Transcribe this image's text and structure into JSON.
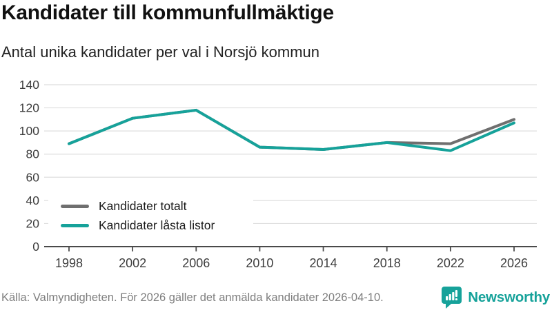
{
  "header": {
    "title": "Kandidater till kommunfullmäktige",
    "subtitle": "Antal unika kandidater per val i Norsjö kommun"
  },
  "chart_data": {
    "type": "line",
    "title": "Kandidater till kommunfullmäktige",
    "subtitle": "Antal unika kandidater per val i Norsjö kommun",
    "categories": [
      "1998",
      "2002",
      "2006",
      "2010",
      "2014",
      "2018",
      "2022",
      "2026"
    ],
    "series": [
      {
        "name": "Kandidater totalt",
        "color": "#6f6f6f",
        "values": [
          89,
          111,
          118,
          86,
          84,
          90,
          89,
          110
        ]
      },
      {
        "name": "Kandidater låsta listor",
        "color": "#16a29a",
        "values": [
          89,
          111,
          118,
          86,
          84,
          90,
          83,
          107
        ]
      }
    ],
    "xlabel": "",
    "ylabel": "",
    "ylim": [
      0,
      140
    ],
    "yticks": [
      0,
      20,
      40,
      60,
      80,
      100,
      120,
      140
    ],
    "grid": true,
    "legend_position": "inside-bottom-left"
  },
  "footer": {
    "source": "Källa: Valmyndigheten. För 2026 gäller det anmälda kandidater 2026-04-10.",
    "brand": "Newsworthy"
  },
  "colors": {
    "accent_teal": "#16a29a",
    "series_gray": "#6f6f6f",
    "grid": "#dedede",
    "axis": "#4a4a4a",
    "tick_text": "#3d3d3d",
    "title_text": "#111111",
    "subtitle_text": "#222222",
    "muted_text": "#7e7e7e"
  }
}
